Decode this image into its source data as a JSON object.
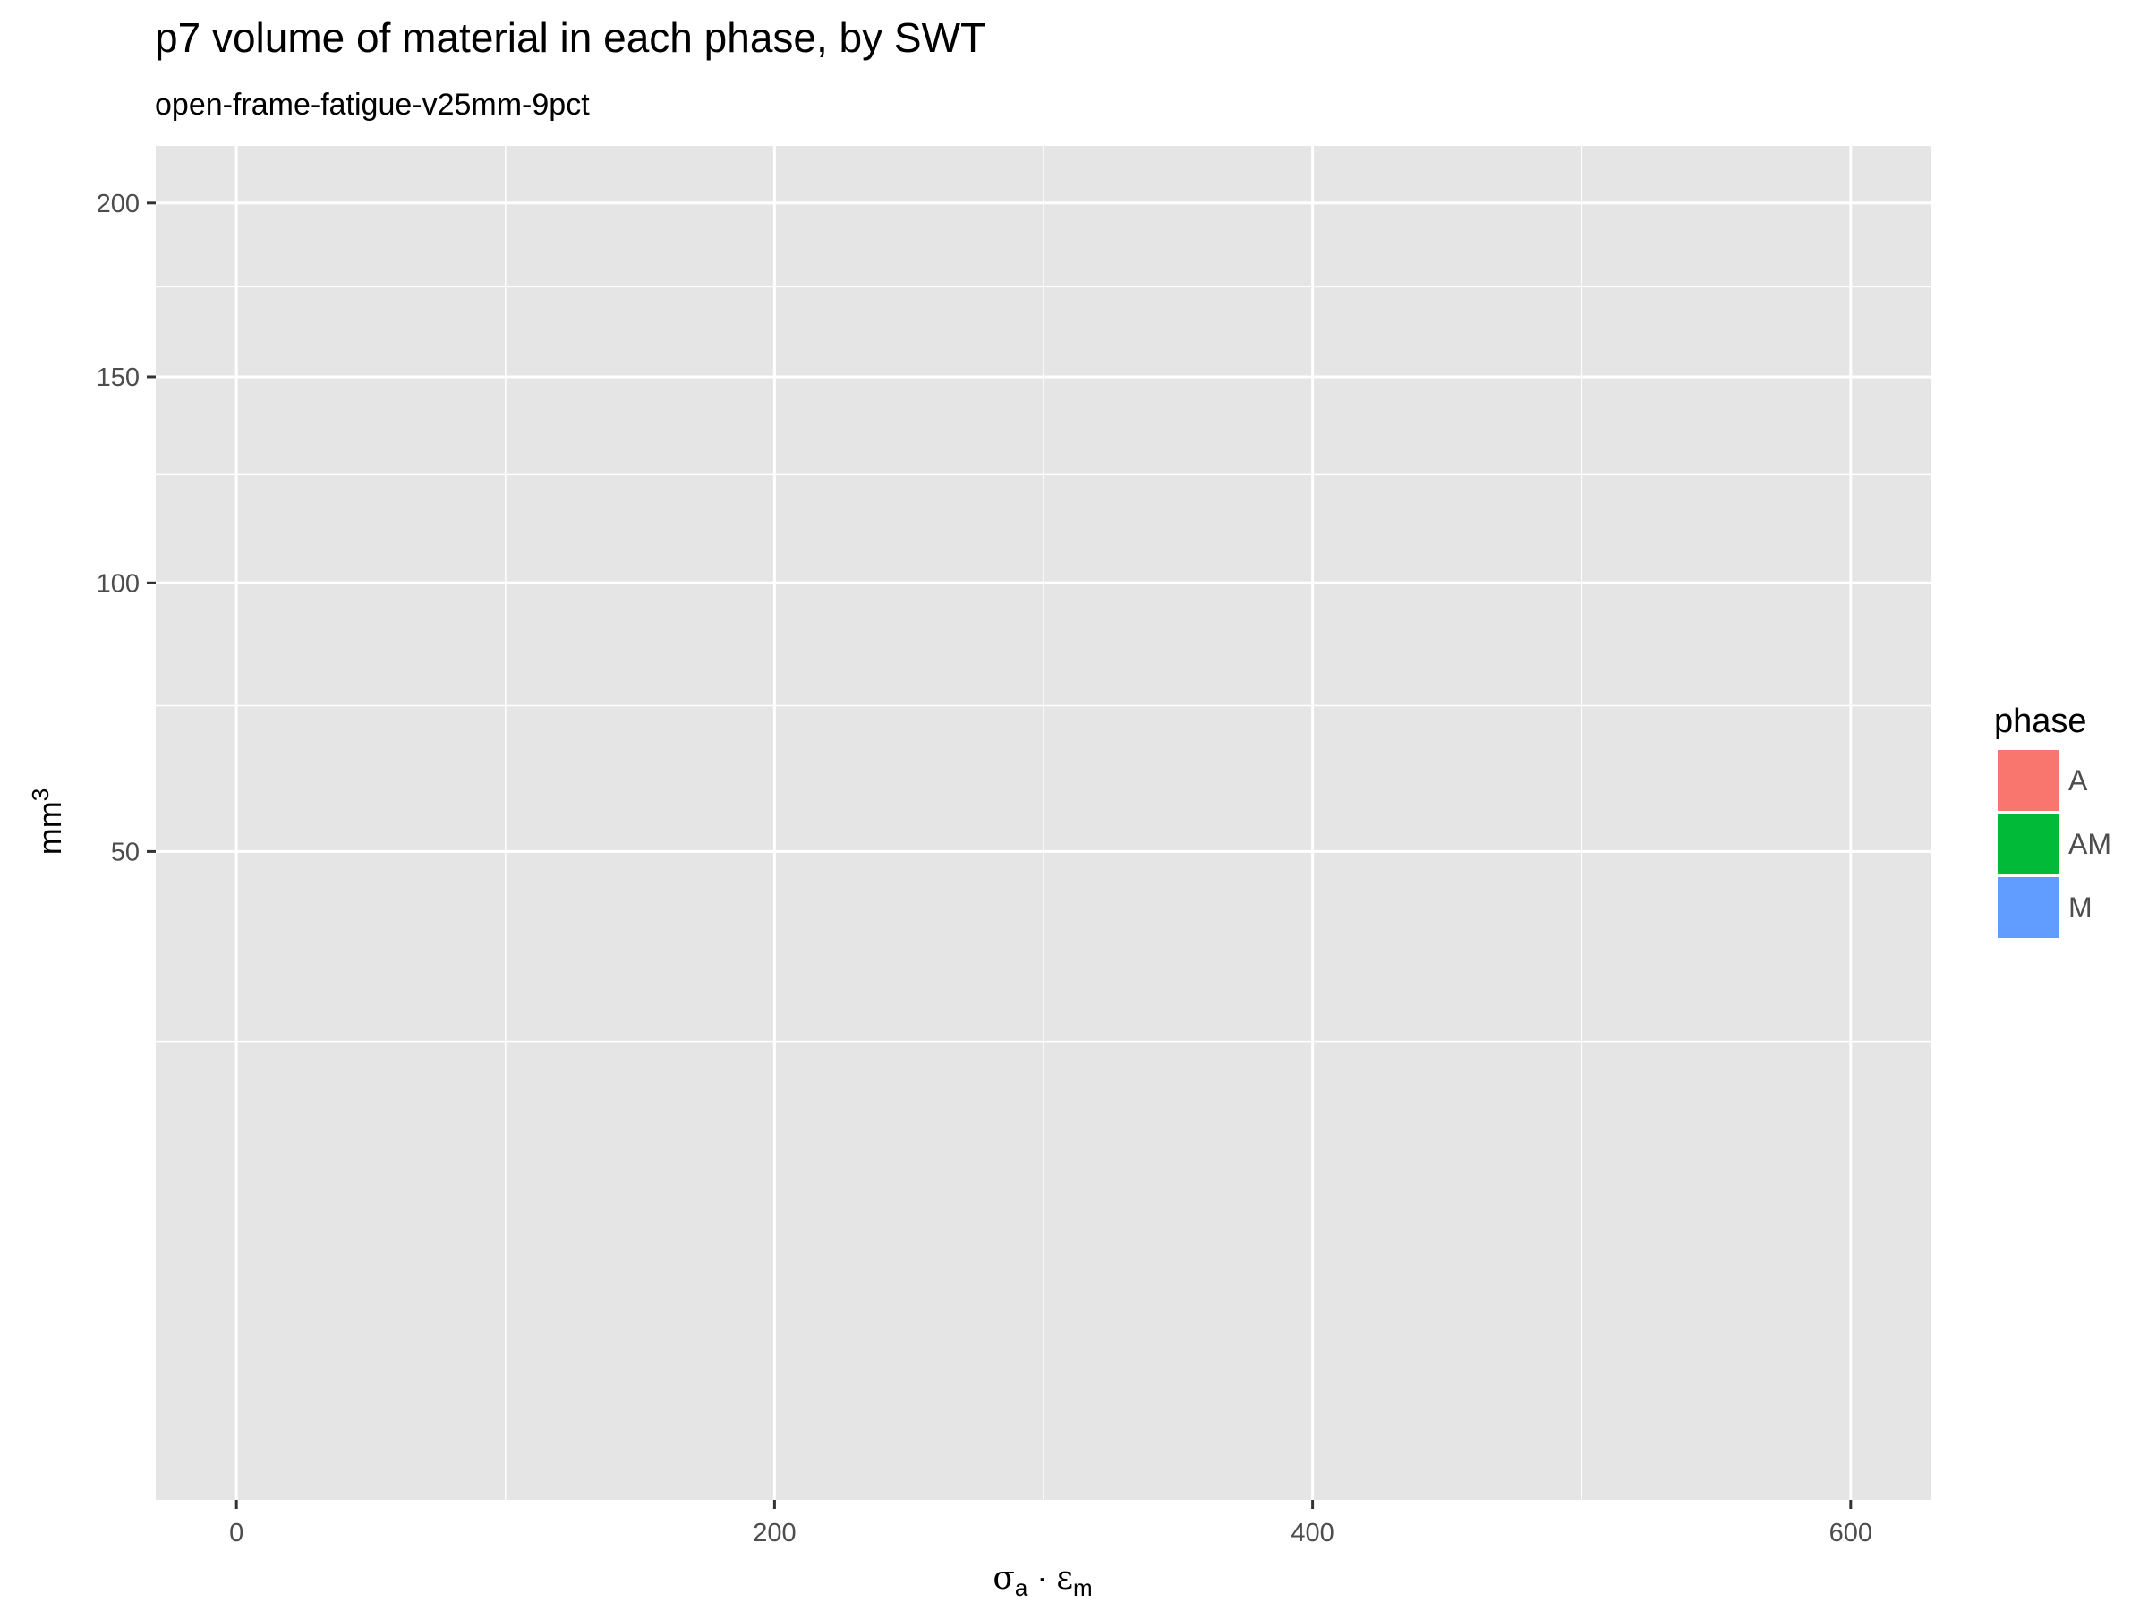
{
  "chart_data": {
    "type": "area",
    "title": "p7 volume of material in each phase, by SWT",
    "subtitle": "open-frame-fatigue-v25mm-9pct",
    "xlabel": {
      "main": "σ",
      "sub1": "a",
      "dot": " · ",
      "main2": "ε",
      "sub2": "m"
    },
    "ylabel": {
      "base": "mm",
      "sup": "3"
    },
    "y_scale": "sqrt",
    "x_ticks": [
      0,
      200,
      400,
      600
    ],
    "x_tick_labels": [
      "0",
      "200",
      "400",
      "600"
    ],
    "x_minor_ticks": [
      100,
      300,
      500
    ],
    "xlim": [
      -30,
      630
    ],
    "y_ticks": [
      50,
      100,
      150,
      200
    ],
    "y_tick_labels": [
      "50",
      "100",
      "150",
      "200"
    ],
    "y_minor_ticks": [
      25,
      75,
      125,
      175
    ],
    "ylim": [
      0,
      218
    ],
    "grid": true,
    "legend": {
      "title": "phase",
      "position": "right",
      "entries": [
        {
          "label": "A",
          "color": "#F8766D"
        },
        {
          "label": "AM",
          "color": "#00BA38"
        },
        {
          "label": "M",
          "color": "#619CFF"
        }
      ]
    },
    "series": [],
    "panel_background": "#E5E5E5",
    "grid_color": "#FFFFFF"
  }
}
